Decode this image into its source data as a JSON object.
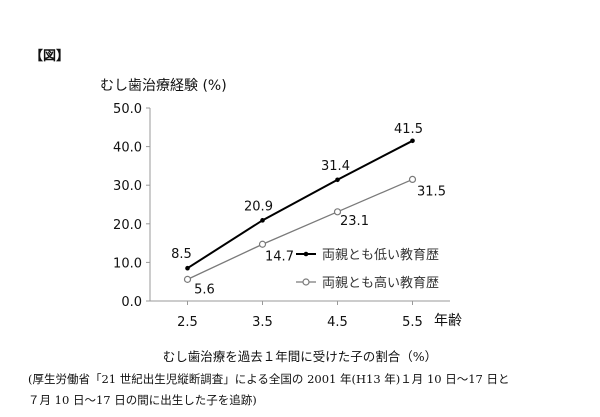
{
  "figure_label": "【図】",
  "caption": "むし歯治療を過去１年間に受けた子の割合（%）",
  "source_note": [
    "(厚生労働省「21 世紀出生児縦断調査」による全国の 2001 年(H13 年)１月 10 日～17 日と",
    "７月 10 日～17 日の間に出生した子を追跡)"
  ],
  "chart_data": {
    "type": "line",
    "ylabel": "むし歯治療経験 (%)",
    "xlabel": "年齢",
    "x": [
      2.5,
      3.5,
      4.5,
      5.5
    ],
    "xticks": [
      "2.5",
      "3.5",
      "4.5",
      "5.5"
    ],
    "ylim": [
      0,
      50
    ],
    "yticks": [
      "0.0",
      "10.0",
      "20.0",
      "30.0",
      "40.0",
      "50.0"
    ],
    "grid": false,
    "legend_position": "right",
    "series": [
      {
        "name": "両親とも低い教育歴",
        "values": [
          8.5,
          20.9,
          31.4,
          41.5
        ],
        "labels": [
          "8.5",
          "20.9",
          "31.4",
          "41.5"
        ],
        "color": "#000000",
        "marker": "filled-dot"
      },
      {
        "name": "両親とも高い教育歴",
        "values": [
          5.6,
          14.7,
          23.1,
          31.5
        ],
        "labels": [
          "5.6",
          "14.7",
          "23.1",
          "31.5"
        ],
        "color": "#7a7a7a",
        "marker": "open-circle"
      }
    ]
  }
}
